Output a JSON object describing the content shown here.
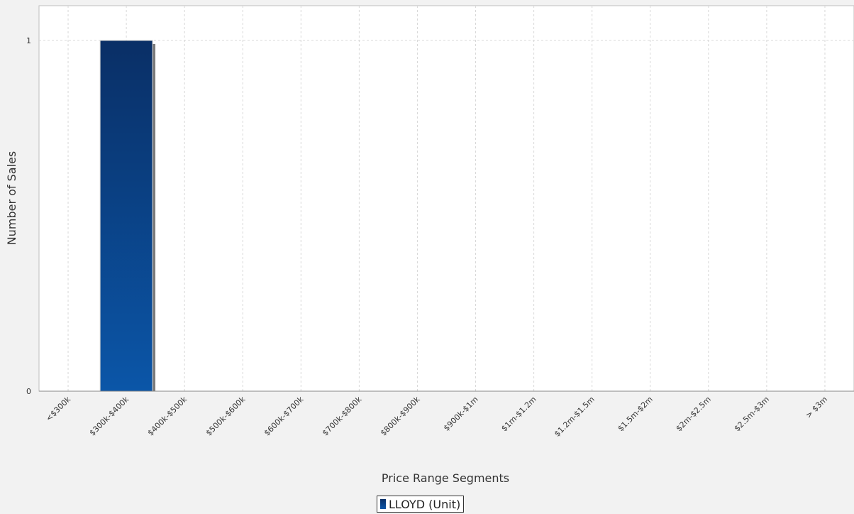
{
  "chart_data": {
    "type": "bar",
    "title": "",
    "xlabel": "Price Range Segments",
    "ylabel": "Number of Sales",
    "categories": [
      "<$300k",
      "$300k-$400k",
      "$400k-$500k",
      "$500k-$600k",
      "$600k-$700k",
      "$700k-$800k",
      "$800k-$900k",
      "$900k-$1m",
      "$1m-$1.2m",
      "$1.2m-$1.5m",
      "$1.5m-$2m",
      "$2m-$2.5m",
      "$2.5m-$3m",
      "> $3m"
    ],
    "series": [
      {
        "name": "LLOYD (Unit)",
        "values": [
          0,
          1,
          0,
          0,
          0,
          0,
          0,
          0,
          0,
          0,
          0,
          0,
          0,
          0
        ]
      }
    ],
    "ylim": [
      0,
      1
    ],
    "yticks": [
      0,
      1
    ],
    "grid": true,
    "legend_position": "bottom-center",
    "colors": {
      "bar_top": "#0a2f66",
      "bar_bottom": "#0b56a8",
      "shadow": "#7a7a7a",
      "grid": "#d8d8d8"
    }
  }
}
